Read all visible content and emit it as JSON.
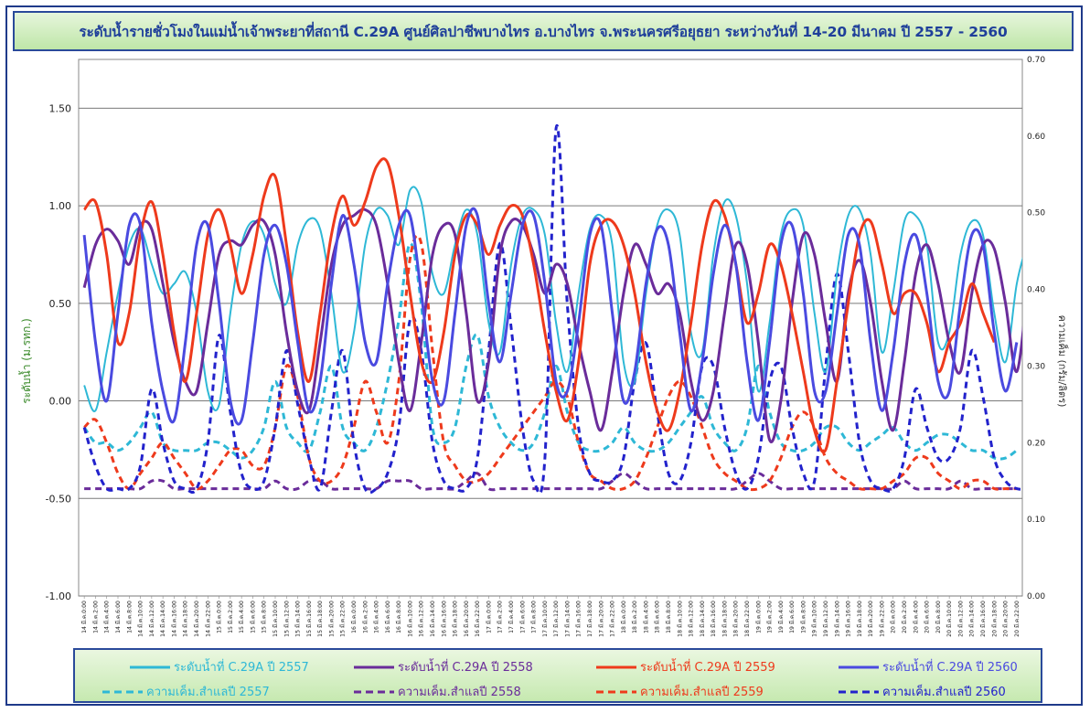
{
  "title": "ระดับน้ำรายชั่วโมงในแม่น้ำเจ้าพระยาที่สถานี  C.29A ศูนย์ศิลปาชีพบางไทร  อ.บางไทร จ.พระนครศรีอยุธยา ระหว่างวันที่  14-20 มีนาคม ปี 2557  - 2560",
  "chart_data": {
    "type": "line",
    "ylabel_left": "ระดับน้ำ (ม.รทก.)",
    "ylabel_right": "ความเค็ม (กรัม/ลิตร)",
    "y_left": {
      "min": -1.0,
      "max": 1.75,
      "ticks": [
        -1.0,
        -0.5,
        0.0,
        0.5,
        1.0,
        1.5
      ],
      "tick_labels": [
        "-1.00",
        "-0.50",
        "0.00",
        "0.50",
        "1.00",
        "1.50"
      ]
    },
    "y_right": {
      "min": 0.0,
      "max": 0.7,
      "ticks": [
        0.0,
        0.1,
        0.2,
        0.3,
        0.4,
        0.5,
        0.6,
        0.7
      ],
      "tick_labels": [
        "0.00",
        "0.10",
        "0.20",
        "0.30",
        "0.40",
        "0.50",
        "0.60",
        "0.70"
      ]
    },
    "grid": "horizontal",
    "legend": "bottom",
    "x_tick_labels": [
      "14 มี.ค.0:00",
      "14 มี.ค.2:00",
      "14 มี.ค.4:00",
      "14 มี.ค.6:00",
      "14 มี.ค.8:00",
      "14 มี.ค.10:00",
      "14 มี.ค.12:00",
      "14 มี.ค.14:00",
      "14 มี.ค.16:00",
      "14 มี.ค.18:00",
      "14 มี.ค.20:00",
      "14 มี.ค.22:00",
      "15 มี.ค.0:00",
      "15 มี.ค.2:00",
      "15 มี.ค.4:00",
      "15 มี.ค.6:00",
      "15 มี.ค.8:00",
      "15 มี.ค.10:00",
      "15 มี.ค.12:00",
      "15 มี.ค.14:00",
      "15 มี.ค.16:00",
      "15 มี.ค.18:00",
      "15 มี.ค.20:00",
      "15 มี.ค.22:00",
      "16 มี.ค.0:00",
      "16 มี.ค.2:00",
      "16 มี.ค.4:00",
      "16 มี.ค.6:00",
      "16 มี.ค.8:00",
      "16 มี.ค.10:00",
      "16 มี.ค.12:00",
      "16 มี.ค.14:00",
      "16 มี.ค.16:00",
      "16 มี.ค.18:00",
      "16 มี.ค.20:00",
      "16 มี.ค.22:00",
      "17 มี.ค.0:00",
      "17 มี.ค.2:00",
      "17 มี.ค.4:00",
      "17 มี.ค.6:00",
      "17 มี.ค.8:00",
      "17 มี.ค.10:00",
      "17 มี.ค.12:00",
      "17 มี.ค.14:00",
      "17 มี.ค.16:00",
      "17 มี.ค.18:00",
      "17 มี.ค.20:00",
      "17 มี.ค.22:00",
      "18 มี.ค.0:00",
      "18 มี.ค.2:00",
      "18 มี.ค.4:00",
      "18 มี.ค.6:00",
      "18 มี.ค.8:00",
      "18 มี.ค.10:00",
      "18 มี.ค.12:00",
      "18 มี.ค.14:00",
      "18 มี.ค.16:00",
      "18 มี.ค.18:00",
      "18 มี.ค.20:00",
      "18 มี.ค.22:00",
      "19 มี.ค.0:00",
      "19 มี.ค.2:00",
      "19 มี.ค.4:00",
      "19 มี.ค.6:00",
      "19 มี.ค.8:00",
      "19 มี.ค.10:00",
      "19 มี.ค.12:00",
      "19 มี.ค.14:00",
      "19 มี.ค.16:00",
      "19 มี.ค.18:00",
      "19 มี.ค.20:00",
      "19 มี.ค.22:00",
      "20 มี.ค.0:00",
      "20 มี.ค.2:00",
      "20 มี.ค.4:00",
      "20 มี.ค.6:00",
      "20 มี.ค.8:00",
      "20 มี.ค.10:00",
      "20 มี.ค.12:00",
      "20 มี.ค.14:00",
      "20 มี.ค.16:00",
      "20 มี.ค.18:00",
      "20 มี.ค.20:00",
      "20 มี.ค.22:00"
    ],
    "series": [
      {
        "name": "ระดับน้ำที่ C.29A ปี 2557",
        "axis": "left",
        "color": "#2eb8d6",
        "dash": false,
        "width": 2,
        "values": [
          0.08,
          -0.05,
          0.25,
          0.55,
          0.8,
          0.88,
          0.7,
          0.55,
          0.6,
          0.66,
          0.45,
          0.05,
          -0.02,
          0.45,
          0.8,
          0.92,
          0.85,
          0.6,
          0.5,
          0.8,
          0.93,
          0.88,
          0.55,
          0.15,
          0.35,
          0.8,
          0.98,
          0.95,
          0.8,
          1.08,
          1.02,
          0.65,
          0.55,
          0.8,
          0.98,
          0.85,
          0.4,
          0.25,
          0.7,
          0.95,
          0.98,
          0.85,
          0.4,
          0.15,
          0.55,
          0.88,
          0.95,
          0.8,
          0.2,
          0.1,
          0.55,
          0.9,
          0.98,
          0.85,
          0.35,
          0.25,
          0.75,
          1.02,
          0.95,
          0.6,
          0.05,
          0.4,
          0.85,
          0.98,
          0.9,
          0.45,
          0.15,
          0.65,
          0.95,
          0.98,
          0.75,
          0.25,
          0.55,
          0.92,
          0.95,
          0.8,
          0.3,
          0.35,
          0.75,
          0.92,
          0.85,
          0.45,
          0.2,
          0.6,
          0.82
        ]
      },
      {
        "name": "ระดับน้ำที่ C.29A ปี 2558",
        "axis": "left",
        "color": "#6a2c9a",
        "dash": false,
        "width": 3,
        "values": [
          0.58,
          0.8,
          0.88,
          0.82,
          0.7,
          0.9,
          0.88,
          0.6,
          0.3,
          0.1,
          0.05,
          0.4,
          0.75,
          0.82,
          0.8,
          0.9,
          0.92,
          0.75,
          0.35,
          0.05,
          -0.05,
          0.3,
          0.7,
          0.9,
          0.95,
          0.98,
          0.9,
          0.6,
          0.2,
          -0.05,
          0.3,
          0.75,
          0.9,
          0.85,
          0.45,
          0.0,
          0.2,
          0.75,
          0.92,
          0.9,
          0.75,
          0.55,
          0.7,
          0.6,
          0.3,
          0.05,
          -0.15,
          0.15,
          0.55,
          0.8,
          0.7,
          0.55,
          0.6,
          0.45,
          0.1,
          -0.1,
          0.05,
          0.45,
          0.8,
          0.7,
          0.3,
          -0.2,
          0.0,
          0.5,
          0.85,
          0.75,
          0.4,
          0.1,
          0.55,
          0.72,
          0.5,
          0.1,
          -0.15,
          0.2,
          0.65,
          0.8,
          0.6,
          0.3,
          0.15,
          0.55,
          0.8,
          0.78,
          0.5,
          0.15,
          0.6
        ]
      },
      {
        "name": "ระดับน้ำที่ C.29A ปี 2559",
        "axis": "left",
        "color": "#ee3a1c",
        "dash": false,
        "width": 3,
        "values": [
          0.98,
          1.02,
          0.75,
          0.3,
          0.45,
          0.85,
          1.02,
          0.75,
          0.35,
          0.1,
          0.45,
          0.85,
          0.98,
          0.8,
          0.55,
          0.75,
          1.05,
          1.15,
          0.8,
          0.35,
          0.1,
          0.45,
          0.85,
          1.05,
          0.9,
          1.02,
          1.2,
          1.22,
          0.95,
          0.55,
          0.2,
          0.1,
          0.35,
          0.75,
          0.95,
          0.9,
          0.75,
          0.9,
          1.0,
          0.95,
          0.7,
          0.35,
          0.05,
          -0.1,
          0.2,
          0.7,
          0.9,
          0.92,
          0.8,
          0.55,
          0.2,
          -0.05,
          -0.15,
          0.05,
          0.4,
          0.8,
          1.02,
          0.95,
          0.7,
          0.4,
          0.55,
          0.8,
          0.7,
          0.45,
          0.15,
          -0.15,
          -0.25,
          0.1,
          0.5,
          0.85,
          0.92,
          0.7,
          0.45,
          0.55,
          0.55,
          0.4,
          0.15,
          0.3,
          0.4,
          0.6,
          0.45,
          0.3
        ]
      },
      {
        "name": "ระดับน้ำที่ C.29A ปี 2560",
        "axis": "left",
        "color": "#4a4ae0",
        "dash": false,
        "width": 3,
        "values": [
          0.85,
          0.3,
          0.0,
          0.45,
          0.9,
          0.9,
          0.4,
          0.05,
          -0.1,
          0.3,
          0.8,
          0.9,
          0.5,
          0.0,
          -0.1,
          0.3,
          0.75,
          0.9,
          0.7,
          0.3,
          -0.05,
          0.1,
          0.6,
          0.95,
          0.7,
          0.3,
          0.2,
          0.6,
          0.9,
          0.95,
          0.55,
          0.1,
          0.0,
          0.45,
          0.9,
          0.95,
          0.5,
          0.2,
          0.55,
          0.9,
          0.95,
          0.6,
          0.1,
          0.05,
          0.4,
          0.85,
          0.9,
          0.45,
          0.0,
          0.15,
          0.6,
          0.88,
          0.8,
          0.35,
          -0.05,
          0.2,
          0.65,
          0.9,
          0.7,
          0.2,
          -0.1,
          0.3,
          0.8,
          0.9,
          0.55,
          0.05,
          0.05,
          0.45,
          0.85,
          0.8,
          0.3,
          -0.05,
          0.25,
          0.7,
          0.85,
          0.55,
          0.1,
          0.05,
          0.5,
          0.85,
          0.8,
          0.35,
          0.05,
          0.3
        ]
      },
      {
        "name": "ความเค็ม.สำแลปี 2557",
        "axis": "right",
        "color": "#2eb8d6",
        "dash": true,
        "width": 3,
        "values": [
          0.22,
          0.2,
          0.2,
          0.19,
          0.2,
          0.22,
          0.24,
          0.2,
          0.19,
          0.19,
          0.19,
          0.2,
          0.2,
          0.19,
          0.18,
          0.19,
          0.22,
          0.28,
          0.22,
          0.2,
          0.19,
          0.24,
          0.3,
          0.22,
          0.2,
          0.19,
          0.22,
          0.28,
          0.36,
          0.46,
          0.38,
          0.22,
          0.2,
          0.22,
          0.3,
          0.34,
          0.26,
          0.22,
          0.2,
          0.19,
          0.2,
          0.24,
          0.3,
          0.24,
          0.2,
          0.19,
          0.19,
          0.2,
          0.22,
          0.2,
          0.19,
          0.19,
          0.2,
          0.22,
          0.24,
          0.26,
          0.22,
          0.2,
          0.19,
          0.22,
          0.3,
          0.24,
          0.2,
          0.19,
          0.19,
          0.2,
          0.22,
          0.22,
          0.2,
          0.19,
          0.2,
          0.21,
          0.22,
          0.2,
          0.19,
          0.2,
          0.21,
          0.21,
          0.2,
          0.19,
          0.19,
          0.18,
          0.18,
          0.19
        ]
      },
      {
        "name": "ความเค็ม.สำแลปี 2558",
        "axis": "right",
        "color": "#6a2c9a",
        "dash": true,
        "width": 3,
        "values": [
          0.14,
          0.14,
          0.14,
          0.14,
          0.14,
          0.14,
          0.15,
          0.15,
          0.14,
          0.14,
          0.14,
          0.14,
          0.14,
          0.14,
          0.14,
          0.14,
          0.14,
          0.15,
          0.14,
          0.14,
          0.15,
          0.15,
          0.14,
          0.14,
          0.14,
          0.14,
          0.14,
          0.15,
          0.15,
          0.15,
          0.14,
          0.14,
          0.14,
          0.14,
          0.15,
          0.16,
          0.14,
          0.14,
          0.14,
          0.14,
          0.14,
          0.14,
          0.14,
          0.14,
          0.14,
          0.14,
          0.14,
          0.15,
          0.16,
          0.15,
          0.14,
          0.14,
          0.14,
          0.14,
          0.14,
          0.14,
          0.14,
          0.14,
          0.14,
          0.15,
          0.16,
          0.15,
          0.14,
          0.14,
          0.14,
          0.14,
          0.14,
          0.14,
          0.14,
          0.14,
          0.14,
          0.14,
          0.14,
          0.15,
          0.14,
          0.14,
          0.14,
          0.14,
          0.15,
          0.14,
          0.14,
          0.14,
          0.14,
          0.14
        ]
      },
      {
        "name": "ความเค็ม.สำแลปี 2559",
        "axis": "right",
        "color": "#ee3a1c",
        "dash": true,
        "width": 3,
        "values": [
          0.22,
          0.23,
          0.2,
          0.16,
          0.14,
          0.16,
          0.18,
          0.2,
          0.18,
          0.16,
          0.14,
          0.15,
          0.17,
          0.19,
          0.19,
          0.17,
          0.17,
          0.22,
          0.3,
          0.26,
          0.18,
          0.15,
          0.15,
          0.17,
          0.22,
          0.28,
          0.24,
          0.2,
          0.28,
          0.44,
          0.46,
          0.32,
          0.2,
          0.17,
          0.15,
          0.15,
          0.16,
          0.18,
          0.2,
          0.22,
          0.24,
          0.26,
          0.28,
          0.26,
          0.2,
          0.16,
          0.15,
          0.14,
          0.14,
          0.15,
          0.18,
          0.22,
          0.26,
          0.28,
          0.26,
          0.22,
          0.18,
          0.16,
          0.15,
          0.14,
          0.14,
          0.15,
          0.18,
          0.22,
          0.24,
          0.22,
          0.18,
          0.16,
          0.15,
          0.14,
          0.14,
          0.14,
          0.15,
          0.16,
          0.18,
          0.18,
          0.16,
          0.15,
          0.14,
          0.15,
          0.15,
          0.14,
          0.14,
          0.14
        ]
      },
      {
        "name": "ความเค็ม.สำแลปี 2560",
        "axis": "right",
        "color": "#2222cc",
        "dash": true,
        "width": 3,
        "values": [
          0.22,
          0.17,
          0.14,
          0.14,
          0.14,
          0.17,
          0.27,
          0.2,
          0.15,
          0.14,
          0.14,
          0.2,
          0.34,
          0.24,
          0.16,
          0.14,
          0.15,
          0.22,
          0.32,
          0.25,
          0.18,
          0.14,
          0.24,
          0.32,
          0.2,
          0.14,
          0.14,
          0.16,
          0.22,
          0.36,
          0.32,
          0.2,
          0.15,
          0.14,
          0.14,
          0.18,
          0.32,
          0.46,
          0.35,
          0.22,
          0.15,
          0.18,
          0.61,
          0.38,
          0.22,
          0.16,
          0.15,
          0.15,
          0.18,
          0.28,
          0.33,
          0.24,
          0.16,
          0.15,
          0.2,
          0.3,
          0.3,
          0.22,
          0.16,
          0.14,
          0.18,
          0.28,
          0.3,
          0.22,
          0.16,
          0.15,
          0.3,
          0.42,
          0.32,
          0.2,
          0.15,
          0.14,
          0.14,
          0.18,
          0.27,
          0.22,
          0.18,
          0.18,
          0.22,
          0.32,
          0.26,
          0.18,
          0.15,
          0.14,
          0.14
        ]
      }
    ]
  }
}
